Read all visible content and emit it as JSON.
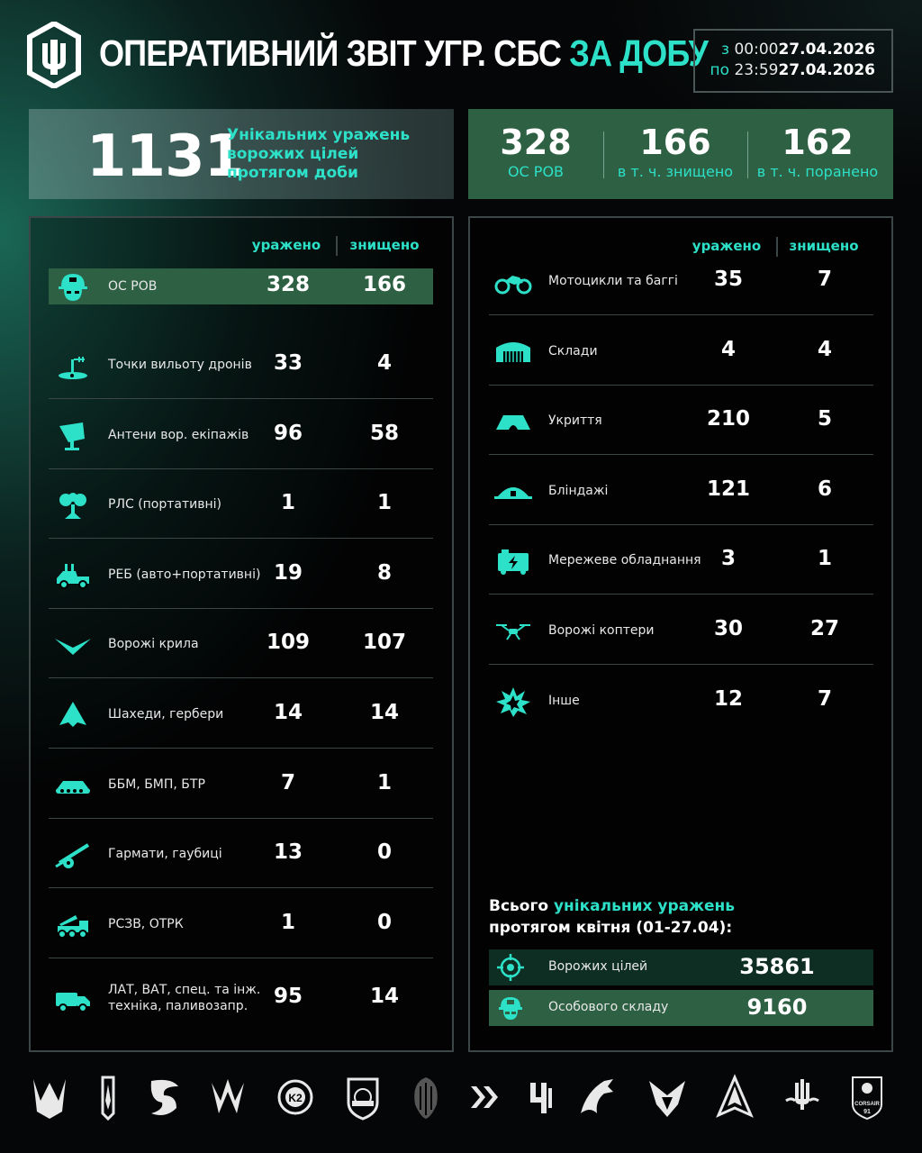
{
  "header": {
    "title_part1": "ОПЕРАТИВНИЙ ЗВІТ УГР. СБС",
    "title_part2": "ЗА ДОБУ",
    "date_from_label": "з",
    "date_from_time": "00:00",
    "date_from_date": "27.04.2026",
    "date_to_label": "по",
    "date_to_time": "23:59",
    "date_to_date": "27.04.2026"
  },
  "summary": {
    "total": "1131",
    "total_desc_line1": "Унікальних уражень",
    "total_desc_line2": "ворожих цілей",
    "total_desc_line3": "протягом доби",
    "stats": [
      {
        "value": "328",
        "label": "ОС РОВ"
      },
      {
        "value": "166",
        "label": "в т. ч. знищено"
      },
      {
        "value": "162",
        "label": "в т. ч. поранено"
      }
    ]
  },
  "columns": {
    "hit": "уражено",
    "destroyed": "знищено"
  },
  "left_rows": [
    {
      "icon": "soldier-helmet-icon",
      "name": "ОС РОВ",
      "hit": "328",
      "destroyed": "166"
    },
    {
      "icon": "drone-launch-point-icon",
      "name": "Точки вильоту дронів",
      "hit": "33",
      "destroyed": "4"
    },
    {
      "icon": "antenna-dish-icon",
      "name": "Антени вор. екіпажів",
      "hit": "96",
      "destroyed": "58"
    },
    {
      "icon": "radar-icon",
      "name": "РЛС (портативні)",
      "hit": "1",
      "destroyed": "1"
    },
    {
      "icon": "ew-vehicle-icon",
      "name": "РЕБ (авто+портативні)",
      "hit": "19",
      "destroyed": "8"
    },
    {
      "icon": "fixed-wing-drone-icon",
      "name": "Ворожі крила",
      "hit": "109",
      "destroyed": "107"
    },
    {
      "icon": "shahed-drone-icon",
      "name": "Шахеди, гербери",
      "hit": "14",
      "destroyed": "14"
    },
    {
      "icon": "apc-icon",
      "name": "ББМ, БМП, БТР",
      "hit": "7",
      "destroyed": "1"
    },
    {
      "icon": "howitzer-icon",
      "name": "Гармати, гаубиці",
      "hit": "13",
      "destroyed": "0"
    },
    {
      "icon": "mlrs-icon",
      "name": "РСЗВ, ОТРК",
      "hit": "1",
      "destroyed": "0"
    },
    {
      "icon": "truck-icon",
      "name_line1": "ЛАТ, ВАТ, спец. та інж.",
      "name_line2": "техніка, паливозапр.",
      "hit": "95",
      "destroyed": "14"
    }
  ],
  "right_rows": [
    {
      "icon": "motorcycle-icon",
      "name": "Мотоцикли та баггі",
      "hit": "35",
      "destroyed": "7"
    },
    {
      "icon": "warehouse-icon",
      "name": "Склади",
      "hit": "4",
      "destroyed": "4"
    },
    {
      "icon": "shelter-icon",
      "name": "Укриття",
      "hit": "210",
      "destroyed": "5"
    },
    {
      "icon": "dugout-icon",
      "name": "Бліндажі",
      "hit": "121",
      "destroyed": "6"
    },
    {
      "icon": "network-equipment-icon",
      "name": "Мережеве обладнання",
      "hit": "3",
      "destroyed": "1"
    },
    {
      "icon": "quadcopter-icon",
      "name": "Ворожі коптери",
      "hit": "30",
      "destroyed": "27"
    },
    {
      "icon": "explosion-icon",
      "name": "Інше",
      "hit": "12",
      "destroyed": "7"
    }
  ],
  "april": {
    "title_part1": "Всього",
    "title_part2": "унікальних уражень",
    "title_line2": "протягом квітня (01-27.04):",
    "rows": [
      {
        "icon": "target-crosshair-icon",
        "name": "Ворожих цілей",
        "value": "35861"
      },
      {
        "icon": "soldier-helmet-icon",
        "name": "Особового складу",
        "value": "9160"
      }
    ]
  },
  "footer": {
    "unit_logos": [
      "unit-emblem-1-icon",
      "unit-emblem-2-icon",
      "unit-emblem-3-icon",
      "unit-emblem-4-icon",
      "unit-emblem-5-icon",
      "unit-emblem-6-icon",
      "unit-emblem-7-icon",
      "unit-emblem-8-icon",
      "unit-emblem-9-icon",
      "unit-emblem-10-icon",
      "unit-emblem-11-icon",
      "unit-emblem-12-icon",
      "unit-emblem-13-icon",
      "unit-emblem-14-icon"
    ],
    "corsair_text": "CORSAIR",
    "corsair_number": "91"
  },
  "colors": {
    "accent": "#2de0c8",
    "highlight_green": "#2e6143",
    "panel_border": "#3c4647"
  }
}
